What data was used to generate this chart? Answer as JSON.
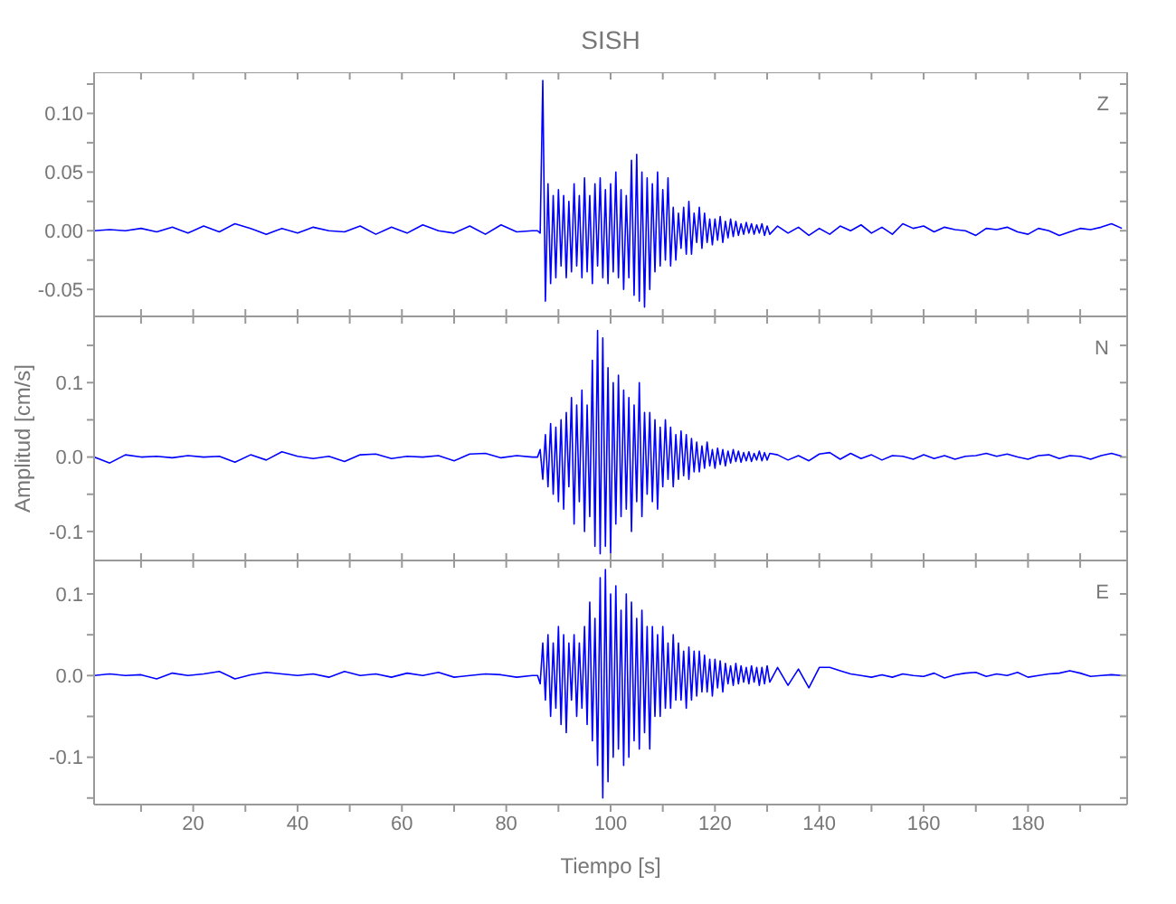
{
  "chart_data": [
    {
      "type": "line",
      "title": "SISH",
      "tick_labels": "y",
      "xlim": [
        1,
        199
      ],
      "xticks": [
        {
          "value": 10,
          "label": null
        },
        20,
        {
          "value": 30,
          "label": null
        },
        40,
        {
          "value": 50,
          "label": null
        },
        60,
        {
          "value": 70,
          "label": null
        },
        80,
        {
          "value": 90,
          "label": null
        },
        100,
        {
          "value": 110,
          "label": null
        },
        120,
        {
          "value": 130,
          "label": null
        },
        140,
        {
          "value": 150,
          "label": null
        },
        160,
        {
          "value": 170,
          "label": null
        },
        180,
        {
          "value": 190,
          "label": null
        }
      ],
      "ylim": [
        -0.073,
        0.135
      ],
      "yticks": [
        -0.05,
        {
          "value": -0.025,
          "label": null
        },
        {
          "value": 0,
          "label": "0.00"
        },
        {
          "value": 0.025,
          "label": null
        },
        0.05,
        {
          "value": 0.075,
          "label": null
        },
        {
          "value": 0.1,
          "label": "0.10"
        },
        {
          "value": 0.125,
          "label": null
        }
      ],
      "x": [
        1,
        4,
        7,
        10,
        13,
        16,
        19,
        22,
        25,
        28,
        31,
        34,
        37,
        40,
        43,
        46,
        49,
        52,
        55,
        58,
        61,
        64,
        67,
        70,
        73,
        76,
        79,
        82,
        85,
        86,
        86.5,
        87,
        87.5,
        88,
        88.5,
        89,
        89.5,
        90,
        90.5,
        91,
        91.5,
        92,
        92.5,
        93,
        93.5,
        94,
        94.5,
        95,
        95.5,
        96,
        96.5,
        97,
        97.5,
        98,
        98.5,
        99,
        99.5,
        100,
        100.5,
        101,
        101.5,
        102,
        102.5,
        103,
        103.5,
        104,
        104.5,
        105,
        105.5,
        106,
        106.5,
        107,
        107.5,
        108,
        108.5,
        109,
        109.5,
        110,
        110.5,
        111,
        111.5,
        112,
        112.5,
        113,
        113.5,
        114,
        114.5,
        115,
        115.5,
        116,
        116.5,
        117,
        117.5,
        118,
        118.5,
        119,
        119.5,
        120,
        120.5,
        121,
        121.5,
        122,
        122.5,
        123,
        123.5,
        124,
        124.5,
        125,
        125.5,
        126,
        126.5,
        127,
        127.5,
        128,
        128.5,
        129,
        129.5,
        130,
        130.5,
        132,
        134,
        136,
        138,
        140,
        142,
        144,
        146,
        148,
        150,
        152,
        154,
        156,
        158,
        160,
        162,
        164,
        166,
        168,
        170,
        172,
        174,
        176,
        178,
        180,
        182,
        184,
        186,
        188,
        190,
        192,
        194,
        196,
        198
      ],
      "series": [
        {
          "name": "Z",
          "color": "#0000ff",
          "values": [
            0,
            0.001,
            0,
            0.002,
            -0.001,
            0.003,
            -0.002,
            0.004,
            -0.001,
            0.006,
            0.002,
            -0.003,
            0.002,
            -0.002,
            0.003,
            0,
            -0.001,
            0.004,
            -0.003,
            0.003,
            -0.002,
            0.005,
            0,
            -0.002,
            0.004,
            -0.003,
            0.005,
            -0.001,
            0,
            0,
            -0.002,
            0.128,
            -0.06,
            0.04,
            -0.045,
            0.03,
            -0.04,
            0.035,
            -0.03,
            0.03,
            -0.04,
            0.025,
            -0.035,
            0.04,
            -0.03,
            0.03,
            -0.04,
            0.045,
            -0.035,
            0.03,
            -0.045,
            0.04,
            -0.03,
            0.045,
            -0.04,
            0.035,
            -0.045,
            0.04,
            -0.035,
            0.05,
            -0.04,
            0.035,
            -0.05,
            0.03,
            -0.04,
            0.06,
            -0.055,
            0.065,
            -0.06,
            0.05,
            -0.065,
            0.045,
            -0.05,
            0.04,
            -0.035,
            0.05,
            -0.03,
            0.035,
            -0.025,
            0.045,
            -0.03,
            0.02,
            -0.025,
            0.015,
            -0.015,
            0.02,
            -0.02,
            0.025,
            -0.02,
            0.015,
            -0.01,
            0.02,
            -0.015,
            0.015,
            -0.01,
            0.01,
            -0.012,
            0.01,
            -0.008,
            0.012,
            -0.01,
            0.008,
            -0.006,
            0.01,
            -0.005,
            0.008,
            -0.004,
            0.006,
            -0.003,
            0.007,
            -0.002,
            0.006,
            -0.003,
            0.005,
            -0.002,
            0.006,
            -0.004,
            0.004,
            -0.003,
            0.004,
            -0.002,
            0.003,
            -0.004,
            0.002,
            -0.003,
            0.004,
            0,
            0.005,
            -0.002,
            0.003,
            -0.003,
            0.006,
            0.002,
            0.004,
            -0.001,
            0.003,
            0.001,
            0,
            -0.004,
            0.002,
            0.001,
            0.003,
            -0.001,
            -0.003,
            0.002,
            0,
            -0.004,
            -0.001,
            0.002,
            0.001,
            0.003,
            0.006,
            0.002
          ]
        }
      ]
    },
    {
      "type": "line",
      "ylabel": "Amplitud [cm/s]",
      "tick_labels": "y",
      "xlim": [
        1,
        199
      ],
      "xticks": [
        {
          "value": 10,
          "label": null
        },
        20,
        {
          "value": 30,
          "label": null
        },
        40,
        {
          "value": 50,
          "label": null
        },
        60,
        {
          "value": 70,
          "label": null
        },
        80,
        {
          "value": 90,
          "label": null
        },
        100,
        {
          "value": 110,
          "label": null
        },
        120,
        {
          "value": 130,
          "label": null
        },
        140,
        {
          "value": 150,
          "label": null
        },
        160,
        {
          "value": 170,
          "label": null
        },
        180,
        {
          "value": 190,
          "label": null
        }
      ],
      "ylim": [
        -0.139,
        0.189
      ],
      "yticks": [
        -0.1,
        {
          "value": -0.05,
          "label": null
        },
        {
          "value": 0,
          "label": "0.0"
        },
        {
          "value": 0.05,
          "label": null
        },
        0.1,
        {
          "value": 0.15,
          "label": null
        }
      ],
      "x": [
        1,
        4,
        7,
        10,
        13,
        16,
        19,
        22,
        25,
        28,
        31,
        34,
        37,
        40,
        43,
        46,
        49,
        52,
        55,
        58,
        61,
        64,
        67,
        70,
        73,
        76,
        79,
        82,
        85,
        86,
        86.5,
        87,
        87.5,
        88,
        88.5,
        89,
        89.5,
        90,
        90.5,
        91,
        91.5,
        92,
        92.5,
        93,
        93.5,
        94,
        94.5,
        95,
        95.5,
        96,
        96.5,
        97,
        97.5,
        98,
        98.5,
        99,
        99.5,
        100,
        100.5,
        101,
        101.5,
        102,
        102.5,
        103,
        103.5,
        104,
        104.5,
        105,
        105.5,
        106,
        106.5,
        107,
        107.5,
        108,
        108.5,
        109,
        109.5,
        110,
        110.5,
        111,
        111.5,
        112,
        112.5,
        113,
        113.5,
        114,
        114.5,
        115,
        115.5,
        116,
        116.5,
        117,
        117.5,
        118,
        118.5,
        119,
        119.5,
        120,
        120.5,
        121,
        121.5,
        122,
        122.5,
        123,
        123.5,
        124,
        124.5,
        125,
        125.5,
        126,
        126.5,
        127,
        127.5,
        128,
        128.5,
        129,
        129.5,
        130,
        130.5,
        132,
        134,
        136,
        138,
        140,
        142,
        144,
        146,
        148,
        150,
        152,
        154,
        156,
        158,
        160,
        162,
        164,
        166,
        168,
        170,
        172,
        174,
        176,
        178,
        180,
        182,
        184,
        186,
        188,
        190,
        192,
        194,
        196,
        198
      ],
      "series": [
        {
          "name": "N",
          "color": "#0000ff",
          "values": [
            0,
            -0.008,
            0.003,
            0,
            0.001,
            -0.001,
            0.002,
            0,
            0.001,
            -0.007,
            0.003,
            -0.004,
            0.007,
            0.001,
            -0.002,
            0.001,
            -0.006,
            0.003,
            0.004,
            -0.002,
            0.001,
            0,
            0.002,
            -0.005,
            0.004,
            0.005,
            -0.001,
            0.002,
            0,
            0,
            0.01,
            -0.03,
            0.03,
            -0.04,
            0.045,
            -0.05,
            0.04,
            -0.06,
            0.05,
            -0.07,
            0.06,
            -0.04,
            0.08,
            -0.09,
            0.07,
            -0.06,
            0.09,
            -0.1,
            0.07,
            -0.08,
            0.13,
            -0.12,
            0.17,
            -0.13,
            0.16,
            -0.12,
            0.12,
            -0.13,
            0.1,
            -0.09,
            0.11,
            -0.08,
            0.09,
            -0.07,
            0.08,
            -0.1,
            0.07,
            -0.06,
            0.1,
            -0.08,
            0.06,
            -0.05,
            0.06,
            -0.06,
            0.05,
            -0.07,
            0.04,
            -0.04,
            0.05,
            -0.03,
            0.04,
            -0.04,
            0.03,
            -0.03,
            0.035,
            -0.025,
            0.03,
            -0.03,
            0.025,
            -0.02,
            0.02,
            -0.02,
            0.015,
            -0.015,
            0.02,
            -0.012,
            0.01,
            -0.015,
            0.012,
            -0.01,
            0.01,
            -0.012,
            0.008,
            -0.008,
            0.01,
            -0.006,
            0.008,
            -0.007,
            0.006,
            -0.005,
            0.007,
            -0.006,
            0.005,
            -0.004,
            0.008,
            -0.005,
            0.006,
            -0.004,
            0.005,
            0.003,
            -0.004,
            0.002,
            -0.005,
            0.004,
            0.006,
            -0.003,
            0.005,
            -0.002,
            0.003,
            -0.004,
            0.002,
            0.001,
            -0.003,
            0.003,
            -0.002,
            0.002,
            -0.003,
            0.001,
            0.002,
            0.005,
            0.001,
            0.004,
            0,
            -0.003,
            0.002,
            0.003,
            -0.002,
            0.002,
            0.001,
            -0.003,
            0.002,
            0.005,
            0.001
          ]
        }
      ]
    },
    {
      "type": "line",
      "xlabel": "Tiempo [s]",
      "xlim": [
        1,
        199
      ],
      "xticks": [
        {
          "value": 10,
          "label": null
        },
        20,
        {
          "value": 30,
          "label": null
        },
        40,
        {
          "value": 50,
          "label": null
        },
        60,
        {
          "value": 70,
          "label": null
        },
        80,
        {
          "value": 90,
          "label": null
        },
        100,
        {
          "value": 110,
          "label": null
        },
        120,
        {
          "value": 130,
          "label": null
        },
        140,
        {
          "value": 150,
          "label": null
        },
        160,
        {
          "value": 170,
          "label": null
        },
        180,
        {
          "value": 190,
          "label": null
        }
      ],
      "ylim": [
        -0.158,
        0.141
      ],
      "yticks": [
        {
          "value": -0.15,
          "label": null
        },
        -0.1,
        {
          "value": -0.05,
          "label": null
        },
        {
          "value": 0,
          "label": "0.0"
        },
        {
          "value": 0.05,
          "label": null
        },
        0.1
      ],
      "x": [
        1,
        4,
        7,
        10,
        13,
        16,
        19,
        22,
        25,
        28,
        31,
        34,
        37,
        40,
        43,
        46,
        49,
        52,
        55,
        58,
        61,
        64,
        67,
        70,
        73,
        76,
        79,
        82,
        85,
        86,
        86.5,
        87,
        87.5,
        88,
        88.5,
        89,
        89.5,
        90,
        90.5,
        91,
        91.5,
        92,
        92.5,
        93,
        93.5,
        94,
        94.5,
        95,
        95.5,
        96,
        96.5,
        97,
        97.5,
        98,
        98.5,
        99,
        99.5,
        100,
        100.5,
        101,
        101.5,
        102,
        102.5,
        103,
        103.5,
        104,
        104.5,
        105,
        105.5,
        106,
        106.5,
        107,
        107.5,
        108,
        108.5,
        109,
        109.5,
        110,
        110.5,
        111,
        111.5,
        112,
        112.5,
        113,
        113.5,
        114,
        114.5,
        115,
        115.5,
        116,
        116.5,
        117,
        117.5,
        118,
        118.5,
        119,
        119.5,
        120,
        120.5,
        121,
        121.5,
        122,
        122.5,
        123,
        123.5,
        124,
        124.5,
        125,
        125.5,
        126,
        126.5,
        127,
        127.5,
        128,
        128.5,
        129,
        129.5,
        130,
        130.5,
        132,
        134,
        136,
        138,
        140,
        142,
        144,
        146,
        148,
        150,
        152,
        154,
        156,
        158,
        160,
        162,
        164,
        166,
        168,
        170,
        172,
        174,
        176,
        178,
        180,
        182,
        184,
        186,
        188,
        190,
        192,
        194,
        196,
        198
      ],
      "series": [
        {
          "name": "E",
          "color": "#0000ff",
          "values": [
            0,
            0.002,
            0,
            0.001,
            -0.004,
            0.003,
            0,
            0.002,
            0.005,
            -0.004,
            0.001,
            0.004,
            0.002,
            0,
            0.002,
            -0.002,
            0.005,
            0,
            0.002,
            -0.002,
            0.003,
            0,
            0.004,
            -0.002,
            0,
            0.002,
            0.001,
            -0.002,
            0,
            0,
            -0.01,
            0.04,
            -0.03,
            0.05,
            -0.05,
            0.04,
            -0.04,
            0.06,
            -0.06,
            0.05,
            -0.07,
            0.04,
            -0.03,
            0.05,
            -0.05,
            0.04,
            -0.04,
            0.06,
            -0.06,
            0.09,
            -0.08,
            0.07,
            -0.11,
            0.12,
            -0.15,
            0.13,
            -0.13,
            0.1,
            -0.1,
            0.11,
            -0.09,
            0.08,
            -0.11,
            0.1,
            -0.1,
            0.09,
            -0.08,
            0.07,
            -0.09,
            0.08,
            -0.07,
            0.06,
            -0.09,
            0.06,
            -0.05,
            0.05,
            -0.05,
            0.06,
            -0.04,
            0.04,
            -0.04,
            0.05,
            -0.03,
            0.04,
            -0.03,
            0.03,
            -0.04,
            0.035,
            -0.03,
            0.03,
            -0.025,
            0.03,
            -0.02,
            0.025,
            -0.02,
            0.02,
            -0.025,
            0.02,
            -0.015,
            0.018,
            -0.02,
            0.015,
            -0.01,
            0.012,
            -0.012,
            0.015,
            -0.01,
            0.012,
            -0.008,
            0.01,
            -0.01,
            0.012,
            -0.008,
            0.01,
            -0.012,
            0.01,
            -0.01,
            0.012,
            -0.008,
            0.01,
            -0.012,
            0.008,
            -0.015,
            0.01,
            0.01,
            0.006,
            0.002,
            0,
            -0.002,
            0.001,
            -0.002,
            0.002,
            0,
            -0.001,
            0.003,
            -0.003,
            0.001,
            0.003,
            0.004,
            -0.001,
            0.002,
            0,
            0.004,
            -0.002,
            0,
            0.002,
            0.003,
            0.006,
            0.003,
            -0.001,
            0,
            0.001,
            0
          ]
        }
      ]
    }
  ]
}
